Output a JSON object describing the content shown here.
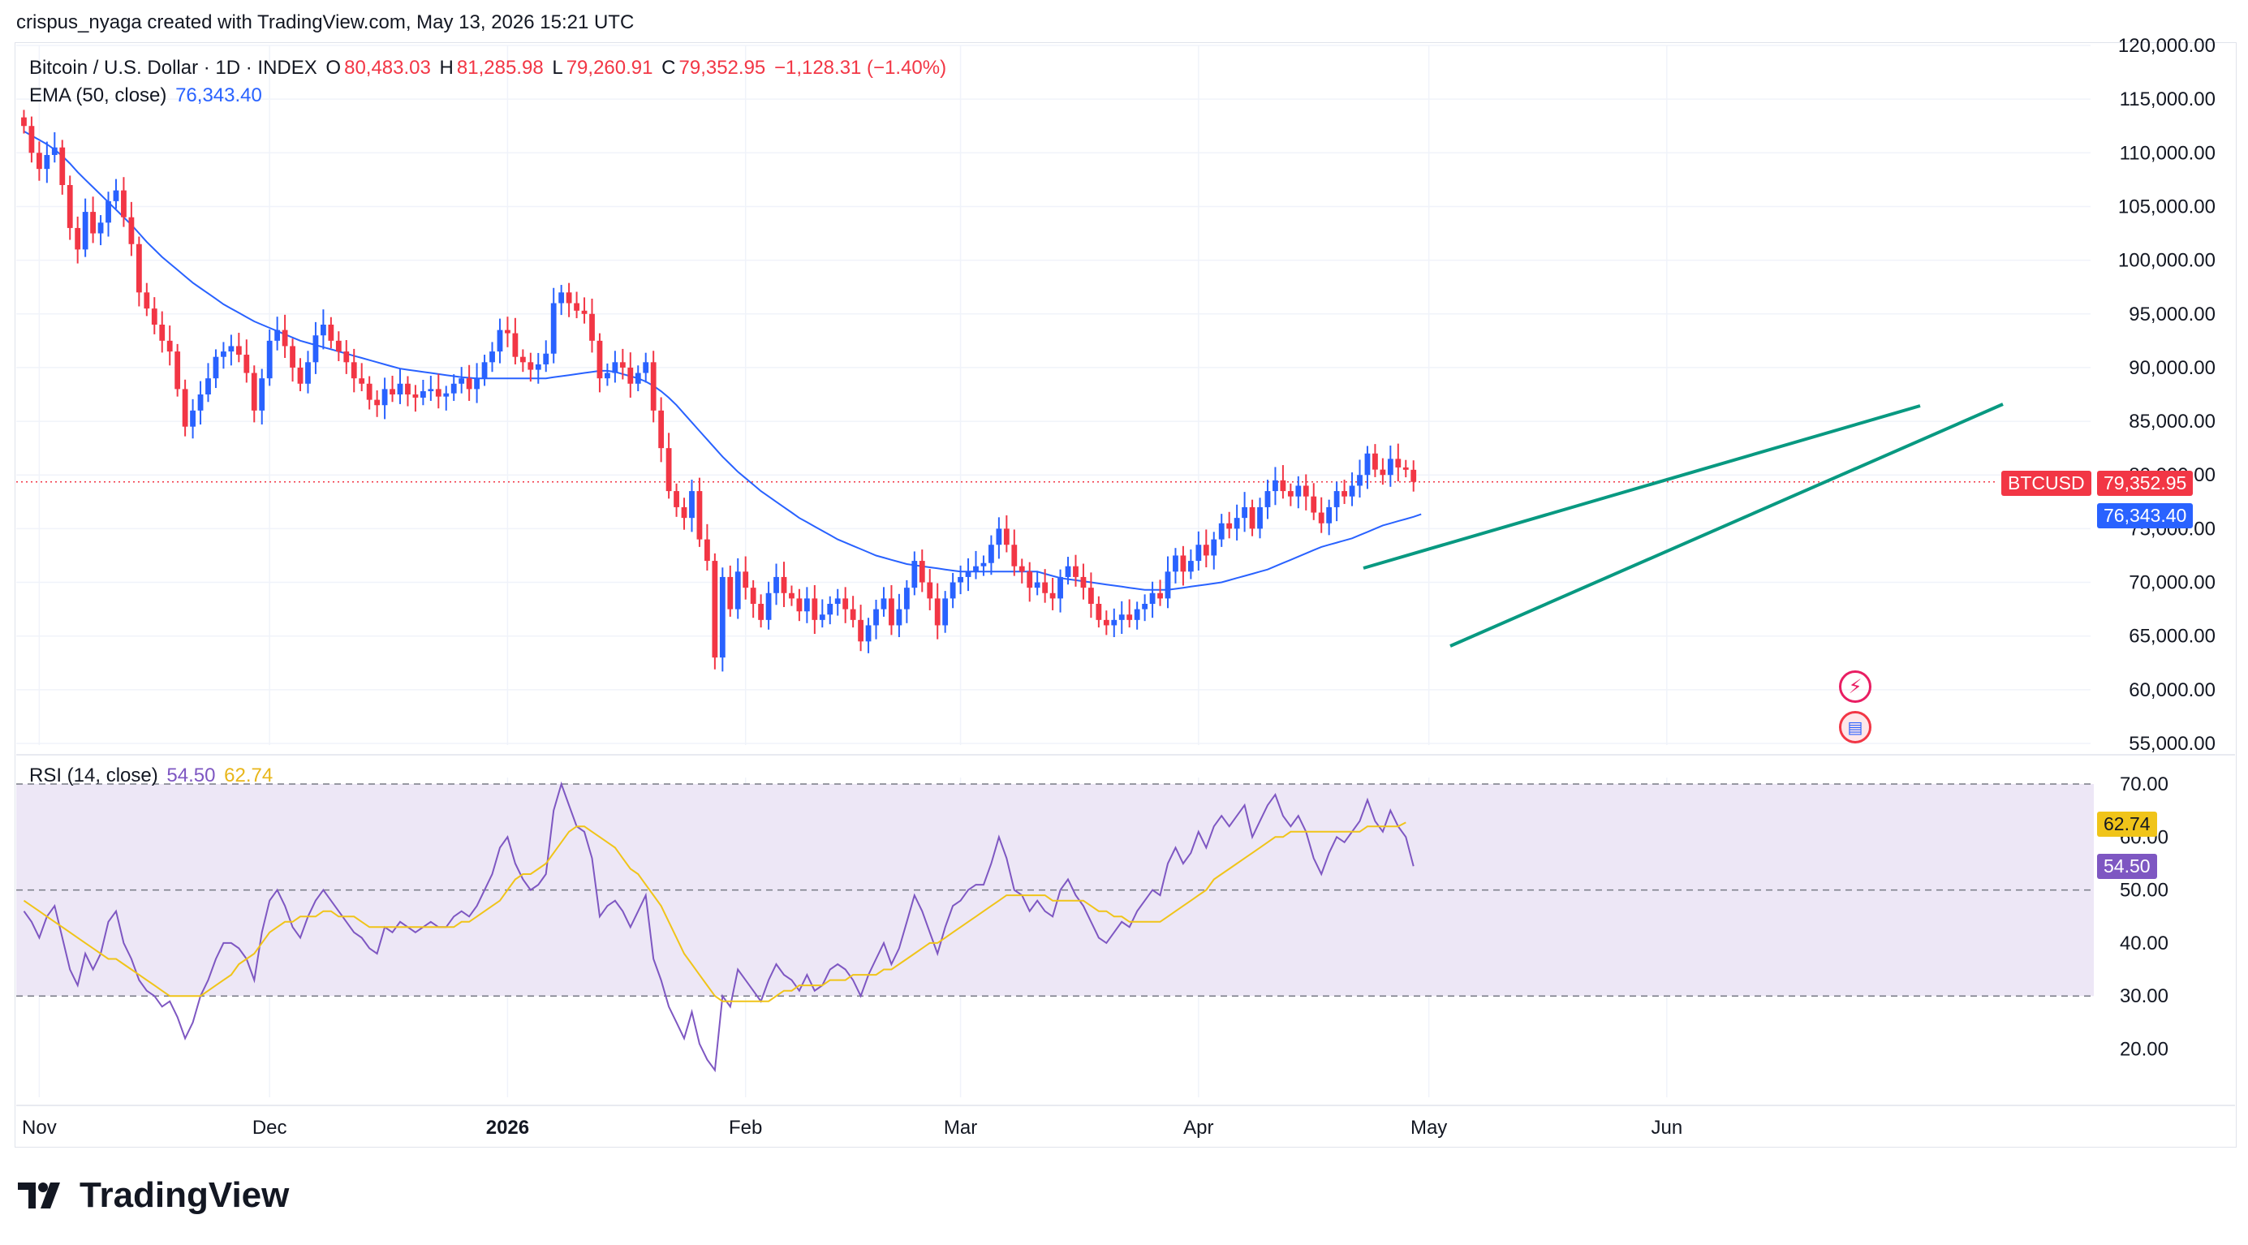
{
  "header": {
    "attribution": "crispus_nyaga created with TradingView.com, May 13, 2026 15:21 UTC"
  },
  "legend": {
    "symbol": "Bitcoin / U.S. Dollar · 1D · INDEX",
    "o_label": "O",
    "o_value": "80,483.03",
    "h_label": "H",
    "h_value": "81,285.98",
    "l_label": "L",
    "l_value": "79,260.91",
    "c_label": "C",
    "c_value": "79,352.95",
    "change": "−1,128.31 (−1.40%)",
    "ema_label": "EMA (50, close)",
    "ema_value": "76,343.40",
    "rsi_label": "RSI (14, close)",
    "rsi_value": "54.50",
    "rsi_ma_value": "62.74"
  },
  "tags": {
    "symbol": "BTCUSD",
    "price": "79,352.95",
    "ema": "76,343.40",
    "rsi_ma": "62.74",
    "rsi": "54.50"
  },
  "brand": {
    "name": "TradingView"
  },
  "colors": {
    "up": "#2962ff",
    "down": "#f23645",
    "ema": "#2962ff",
    "channel": "#089981",
    "rsi": "#7e57c2",
    "rsi_ma": "#f0c419",
    "rsi_band": "#ede7f6",
    "grid": "#f0f3fa"
  },
  "icons": [
    "lightning-icon",
    "us-flag-icon"
  ],
  "chart_data": [
    {
      "type": "candlestick",
      "title": "Bitcoin / U.S. Dollar · 1D · INDEX",
      "x_ticks": [
        "Nov",
        "Dec",
        "2026",
        "Feb",
        "Mar",
        "Apr",
        "May",
        "Jun"
      ],
      "x_range": [
        "2025-10-29",
        "2026-06-15"
      ],
      "y_ticks": [
        55000,
        60000,
        65000,
        70000,
        75000,
        80000,
        85000,
        90000,
        95000,
        100000,
        105000,
        110000,
        115000,
        120000
      ],
      "y_tick_labels": [
        "55,000.00",
        "60,000.00",
        "65,000.00",
        "70,000.00",
        "75,000.00",
        "80,000.00",
        "85,000.00",
        "90,000.00",
        "95,000.00",
        "100,000.00",
        "105,000.00",
        "110,000.00",
        "115,000.00",
        "120,000.00"
      ],
      "ylim": [
        55000,
        120000
      ],
      "start_date": "2025-10-30",
      "closes": [
        112500,
        110000,
        108500,
        109800,
        110500,
        107000,
        103000,
        101000,
        104500,
        102500,
        103500,
        105500,
        106500,
        104000,
        101500,
        97000,
        95500,
        94000,
        92500,
        91500,
        88000,
        84500,
        86000,
        87500,
        89000,
        91000,
        91500,
        92000,
        91200,
        89500,
        86000,
        89000,
        92500,
        93500,
        92000,
        90000,
        88500,
        90500,
        93000,
        94000,
        92500,
        91500,
        90500,
        89000,
        88500,
        87000,
        86500,
        88000,
        87500,
        88500,
        87500,
        87200,
        87800,
        88000,
        87300,
        87600,
        88500,
        89000,
        88000,
        89000,
        90500,
        91500,
        93500,
        93200,
        91000,
        90500,
        89800,
        90300,
        91300,
        96000,
        97000,
        96000,
        95300,
        95000,
        92500,
        89000,
        89500,
        90500,
        90000,
        88500,
        89500,
        90500,
        86000,
        82500,
        78500,
        77000,
        76000,
        78500,
        74000,
        72000,
        63000,
        70500,
        67500,
        71000,
        69500,
        68000,
        66500,
        69000,
        70500,
        69000,
        68500,
        67300,
        68500,
        66500,
        67000,
        68000,
        68500,
        67500,
        66500,
        64500,
        66000,
        67500,
        68500,
        66000,
        67500,
        69500,
        72000,
        70000,
        68500,
        66000,
        68500,
        70000,
        70500,
        71000,
        71500,
        71800,
        73500,
        75000,
        73500,
        71500,
        71000,
        69500,
        70000,
        69000,
        68500,
        70500,
        71500,
        70500,
        69500,
        68000,
        66500,
        66000,
        66500,
        67000,
        66500,
        67500,
        68000,
        69000,
        68500,
        71000,
        72500,
        71000,
        72000,
        73500,
        72500,
        74000,
        75500,
        75000,
        76000,
        77000,
        75000,
        77000,
        78500,
        79500,
        78500,
        78000,
        79000,
        78000,
        76500,
        75500,
        77000,
        78500,
        78000,
        79000,
        80000,
        82000,
        80500,
        80000,
        81500,
        80700,
        80483,
        79353
      ],
      "ema_50": [
        112000,
        111600,
        111200,
        110800,
        110300,
        109700,
        109000,
        108200,
        107500,
        106800,
        106100,
        105400,
        104700,
        104000,
        103300,
        102500,
        101700,
        101000,
        100300,
        99700,
        99100,
        98500,
        97900,
        97400,
        96900,
        96400,
        95900,
        95500,
        95100,
        94700,
        94300,
        94000,
        93700,
        93400,
        93100,
        92800,
        92500,
        92300,
        92100,
        91900,
        91700,
        91500,
        91300,
        91100,
        90900,
        90700,
        90500,
        90300,
        90100,
        89900,
        89800,
        89700,
        89600,
        89500,
        89400,
        89300,
        89200,
        89100,
        89050,
        89000,
        89000,
        89000,
        89000,
        89000,
        89000,
        89000,
        89000,
        89000,
        89000,
        89100,
        89200,
        89300,
        89400,
        89500,
        89600,
        89700,
        89700,
        89600,
        89400,
        89200,
        89000,
        88700,
        88300,
        87800,
        87200,
        86500,
        85700,
        84900,
        84100,
        83300,
        82500,
        81700,
        81000,
        80300,
        79700,
        79100,
        78500,
        78000,
        77500,
        77000,
        76500,
        76000,
        75600,
        75200,
        74800,
        74400,
        74000,
        73700,
        73400,
        73100,
        72800,
        72500,
        72300,
        72100,
        71900,
        71700,
        71600,
        71500,
        71400,
        71300,
        71200,
        71100,
        71000,
        71000,
        71000,
        71000,
        71000,
        71000,
        71000,
        71000,
        71000,
        71000,
        71000,
        70800,
        70600,
        70400,
        70300,
        70200,
        70100,
        70000,
        69900,
        69800,
        69700,
        69600,
        69500,
        69400,
        69300,
        69300,
        69300,
        69300,
        69400,
        69500,
        69600,
        69700,
        69800,
        69900,
        70000,
        70200,
        70400,
        70600,
        70800,
        71000,
        71200,
        71500,
        71800,
        72100,
        72400,
        72700,
        73000,
        73300,
        73500,
        73700,
        73900,
        74100,
        74400,
        74700,
        75000,
        75300,
        75500,
        75700,
        75900,
        76100,
        76343
      ]
    },
    {
      "type": "line",
      "title": "RSI (14, close)",
      "y_ticks": [
        20,
        30,
        40,
        50,
        60,
        70
      ],
      "y_tick_labels": [
        "20.00",
        "30.00",
        "40.00",
        "50.00",
        "60.00",
        "70.00"
      ],
      "ylim": [
        15,
        72
      ],
      "bands": [
        30,
        50,
        70
      ],
      "series": [
        {
          "name": "RSI",
          "values": [
            46,
            44,
            41,
            45,
            47,
            41,
            35,
            32,
            38,
            35,
            38,
            44,
            46,
            40,
            37,
            33,
            31,
            30,
            28,
            29,
            26,
            22,
            25,
            30,
            33,
            37,
            40,
            40,
            39,
            37,
            33,
            42,
            48,
            50,
            47,
            43,
            41,
            45,
            48,
            50,
            48,
            46,
            44,
            42,
            41,
            39,
            38,
            43,
            42,
            44,
            43,
            42,
            43,
            44,
            43,
            43,
            45,
            46,
            45,
            47,
            50,
            53,
            58,
            60,
            55,
            52,
            50,
            51,
            53,
            65,
            70,
            66,
            62,
            61,
            56,
            45,
            47,
            48,
            46,
            43,
            46,
            49,
            37,
            33,
            28,
            25,
            22,
            27,
            21,
            18,
            16,
            30,
            28,
            35,
            33,
            31,
            29,
            33,
            36,
            34,
            33,
            31,
            34,
            31,
            32,
            35,
            36,
            35,
            33,
            30,
            34,
            37,
            40,
            36,
            39,
            44,
            49,
            46,
            42,
            38,
            43,
            47,
            48,
            50,
            51,
            51,
            55,
            60,
            56,
            50,
            49,
            46,
            48,
            46,
            45,
            50,
            52,
            49,
            47,
            44,
            41,
            40,
            42,
            44,
            43,
            46,
            48,
            50,
            49,
            55,
            58,
            55,
            57,
            61,
            58,
            62,
            64,
            62,
            64,
            66,
            60,
            63,
            66,
            68,
            64,
            62,
            64,
            61,
            56,
            53,
            57,
            60,
            59,
            61,
            63,
            67,
            63,
            61,
            65,
            62,
            60,
            54.5
          ]
        },
        {
          "name": "RSI MA",
          "values": [
            48,
            47,
            46,
            45,
            44,
            43,
            42,
            41,
            40,
            39,
            38,
            37,
            37,
            36,
            35,
            34,
            33,
            32,
            31,
            30,
            30,
            30,
            30,
            30,
            31,
            32,
            33,
            34,
            36,
            37,
            38,
            40,
            42,
            43,
            44,
            44,
            45,
            45,
            45,
            46,
            46,
            45,
            45,
            45,
            44,
            43,
            43,
            43,
            43,
            43,
            43,
            43,
            43,
            43,
            43,
            43,
            43,
            44,
            44,
            45,
            46,
            47,
            48,
            50,
            52,
            53,
            53,
            54,
            55,
            57,
            59,
            61,
            62,
            62,
            61,
            60,
            59,
            58,
            56,
            54,
            53,
            51,
            49,
            47,
            44,
            41,
            38,
            36,
            34,
            32,
            30,
            29,
            29,
            29,
            29,
            29,
            29,
            29,
            30,
            31,
            31,
            32,
            32,
            32,
            32,
            33,
            33,
            33,
            34,
            34,
            34,
            34,
            35,
            35,
            36,
            37,
            38,
            39,
            40,
            40,
            41,
            42,
            43,
            44,
            45,
            46,
            47,
            48,
            49,
            49,
            49,
            49,
            49,
            49,
            48,
            48,
            48,
            48,
            48,
            47,
            46,
            46,
            45,
            45,
            44,
            44,
            44,
            44,
            44,
            45,
            46,
            47,
            48,
            49,
            50,
            52,
            53,
            54,
            55,
            56,
            57,
            58,
            59,
            60,
            60,
            61,
            61,
            61,
            61,
            61,
            61,
            61,
            61,
            61,
            61,
            62,
            62,
            62,
            62,
            62,
            62.74
          ]
        }
      ]
    }
  ]
}
